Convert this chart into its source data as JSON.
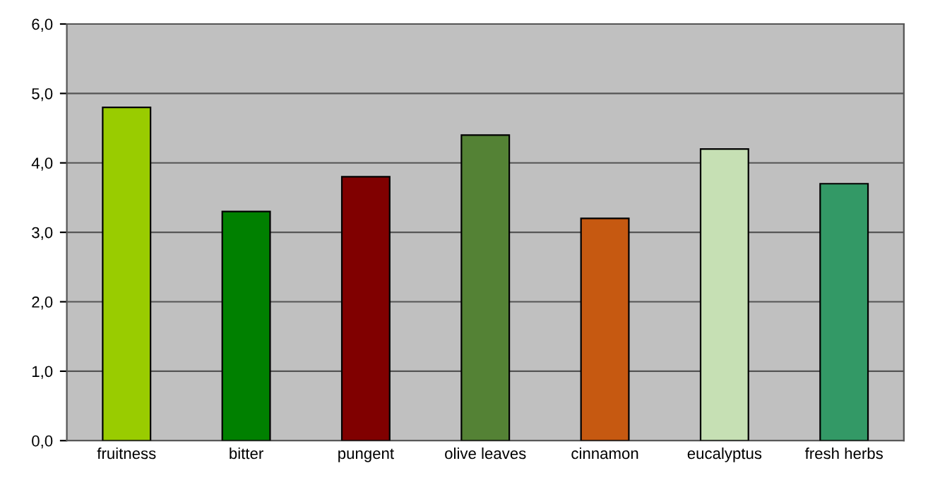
{
  "chart_data": {
    "type": "bar",
    "categories": [
      "fruitness",
      "bitter",
      "pungent",
      "olive leaves",
      "cinnamon",
      "eucalyptus",
      "fresh herbs"
    ],
    "values": [
      4.8,
      3.3,
      3.8,
      4.4,
      3.2,
      4.2,
      3.7
    ],
    "colors": [
      "#99cc00",
      "#008000",
      "#800000",
      "#548235",
      "#c65911",
      "#c6e0b4",
      "#339966"
    ],
    "ylim": [
      0,
      6
    ],
    "yticks": [
      {
        "value": 0,
        "label": "0,0"
      },
      {
        "value": 1,
        "label": "1,0"
      },
      {
        "value": 2,
        "label": "2,0"
      },
      {
        "value": 3,
        "label": "3,0"
      },
      {
        "value": 4,
        "label": "4,0"
      },
      {
        "value": 5,
        "label": "5,0"
      },
      {
        "value": 6,
        "label": "6,0"
      }
    ],
    "grid": "y",
    "legend": false
  }
}
